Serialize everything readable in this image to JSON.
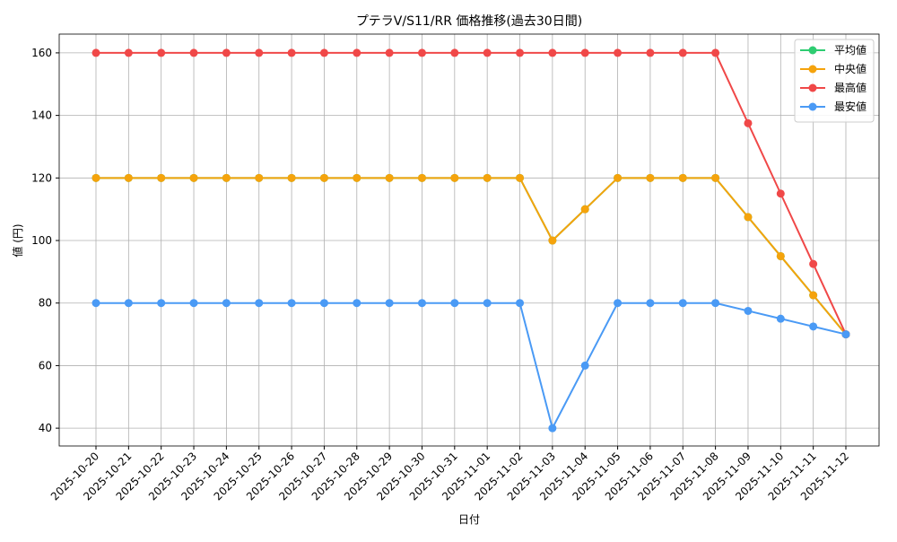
{
  "chart_data": {
    "type": "line",
    "title": "プテラV/S11/RR 価格推移(過去30日間)",
    "x_label": "日付",
    "y_label": "値 (円)",
    "categories": [
      "2025-10-20",
      "2025-10-21",
      "2025-10-22",
      "2025-10-23",
      "2025-10-24",
      "2025-10-25",
      "2025-10-26",
      "2025-10-27",
      "2025-10-28",
      "2025-10-29",
      "2025-10-30",
      "2025-10-31",
      "2025-11-01",
      "2025-11-02",
      "2025-11-03",
      "2025-11-04",
      "2025-11-05",
      "2025-11-06",
      "2025-11-07",
      "2025-11-08",
      "2025-11-09",
      "2025-11-10",
      "2025-11-11",
      "2025-11-12"
    ],
    "series": [
      {
        "name": "平均値",
        "color": "#2ecc71",
        "values": [
          120,
          120,
          120,
          120,
          120,
          120,
          120,
          120,
          120,
          120,
          120,
          120,
          120,
          120,
          100,
          110,
          120,
          120,
          120,
          120,
          107.5,
          95,
          82.5,
          70
        ]
      },
      {
        "name": "中央値",
        "color": "#f5a30c",
        "values": [
          120,
          120,
          120,
          120,
          120,
          120,
          120,
          120,
          120,
          120,
          120,
          120,
          120,
          120,
          100,
          110,
          120,
          120,
          120,
          120,
          107.5,
          95,
          82.5,
          70
        ]
      },
      {
        "name": "最高値",
        "color": "#f04848",
        "values": [
          160,
          160,
          160,
          160,
          160,
          160,
          160,
          160,
          160,
          160,
          160,
          160,
          160,
          160,
          160,
          160,
          160,
          160,
          160,
          160,
          137.5,
          115,
          92.5,
          70
        ]
      },
      {
        "name": "最安値",
        "color": "#4a9af5",
        "values": [
          80,
          80,
          80,
          80,
          80,
          80,
          80,
          80,
          80,
          80,
          80,
          80,
          80,
          80,
          40,
          60,
          80,
          80,
          80,
          80,
          77.5,
          75,
          72.5,
          70
        ]
      }
    ],
    "ylim": [
      34.3,
      166
    ],
    "yticks": [
      40,
      60,
      80,
      100,
      120,
      140,
      160
    ],
    "grid": true,
    "legend": "upper right"
  }
}
